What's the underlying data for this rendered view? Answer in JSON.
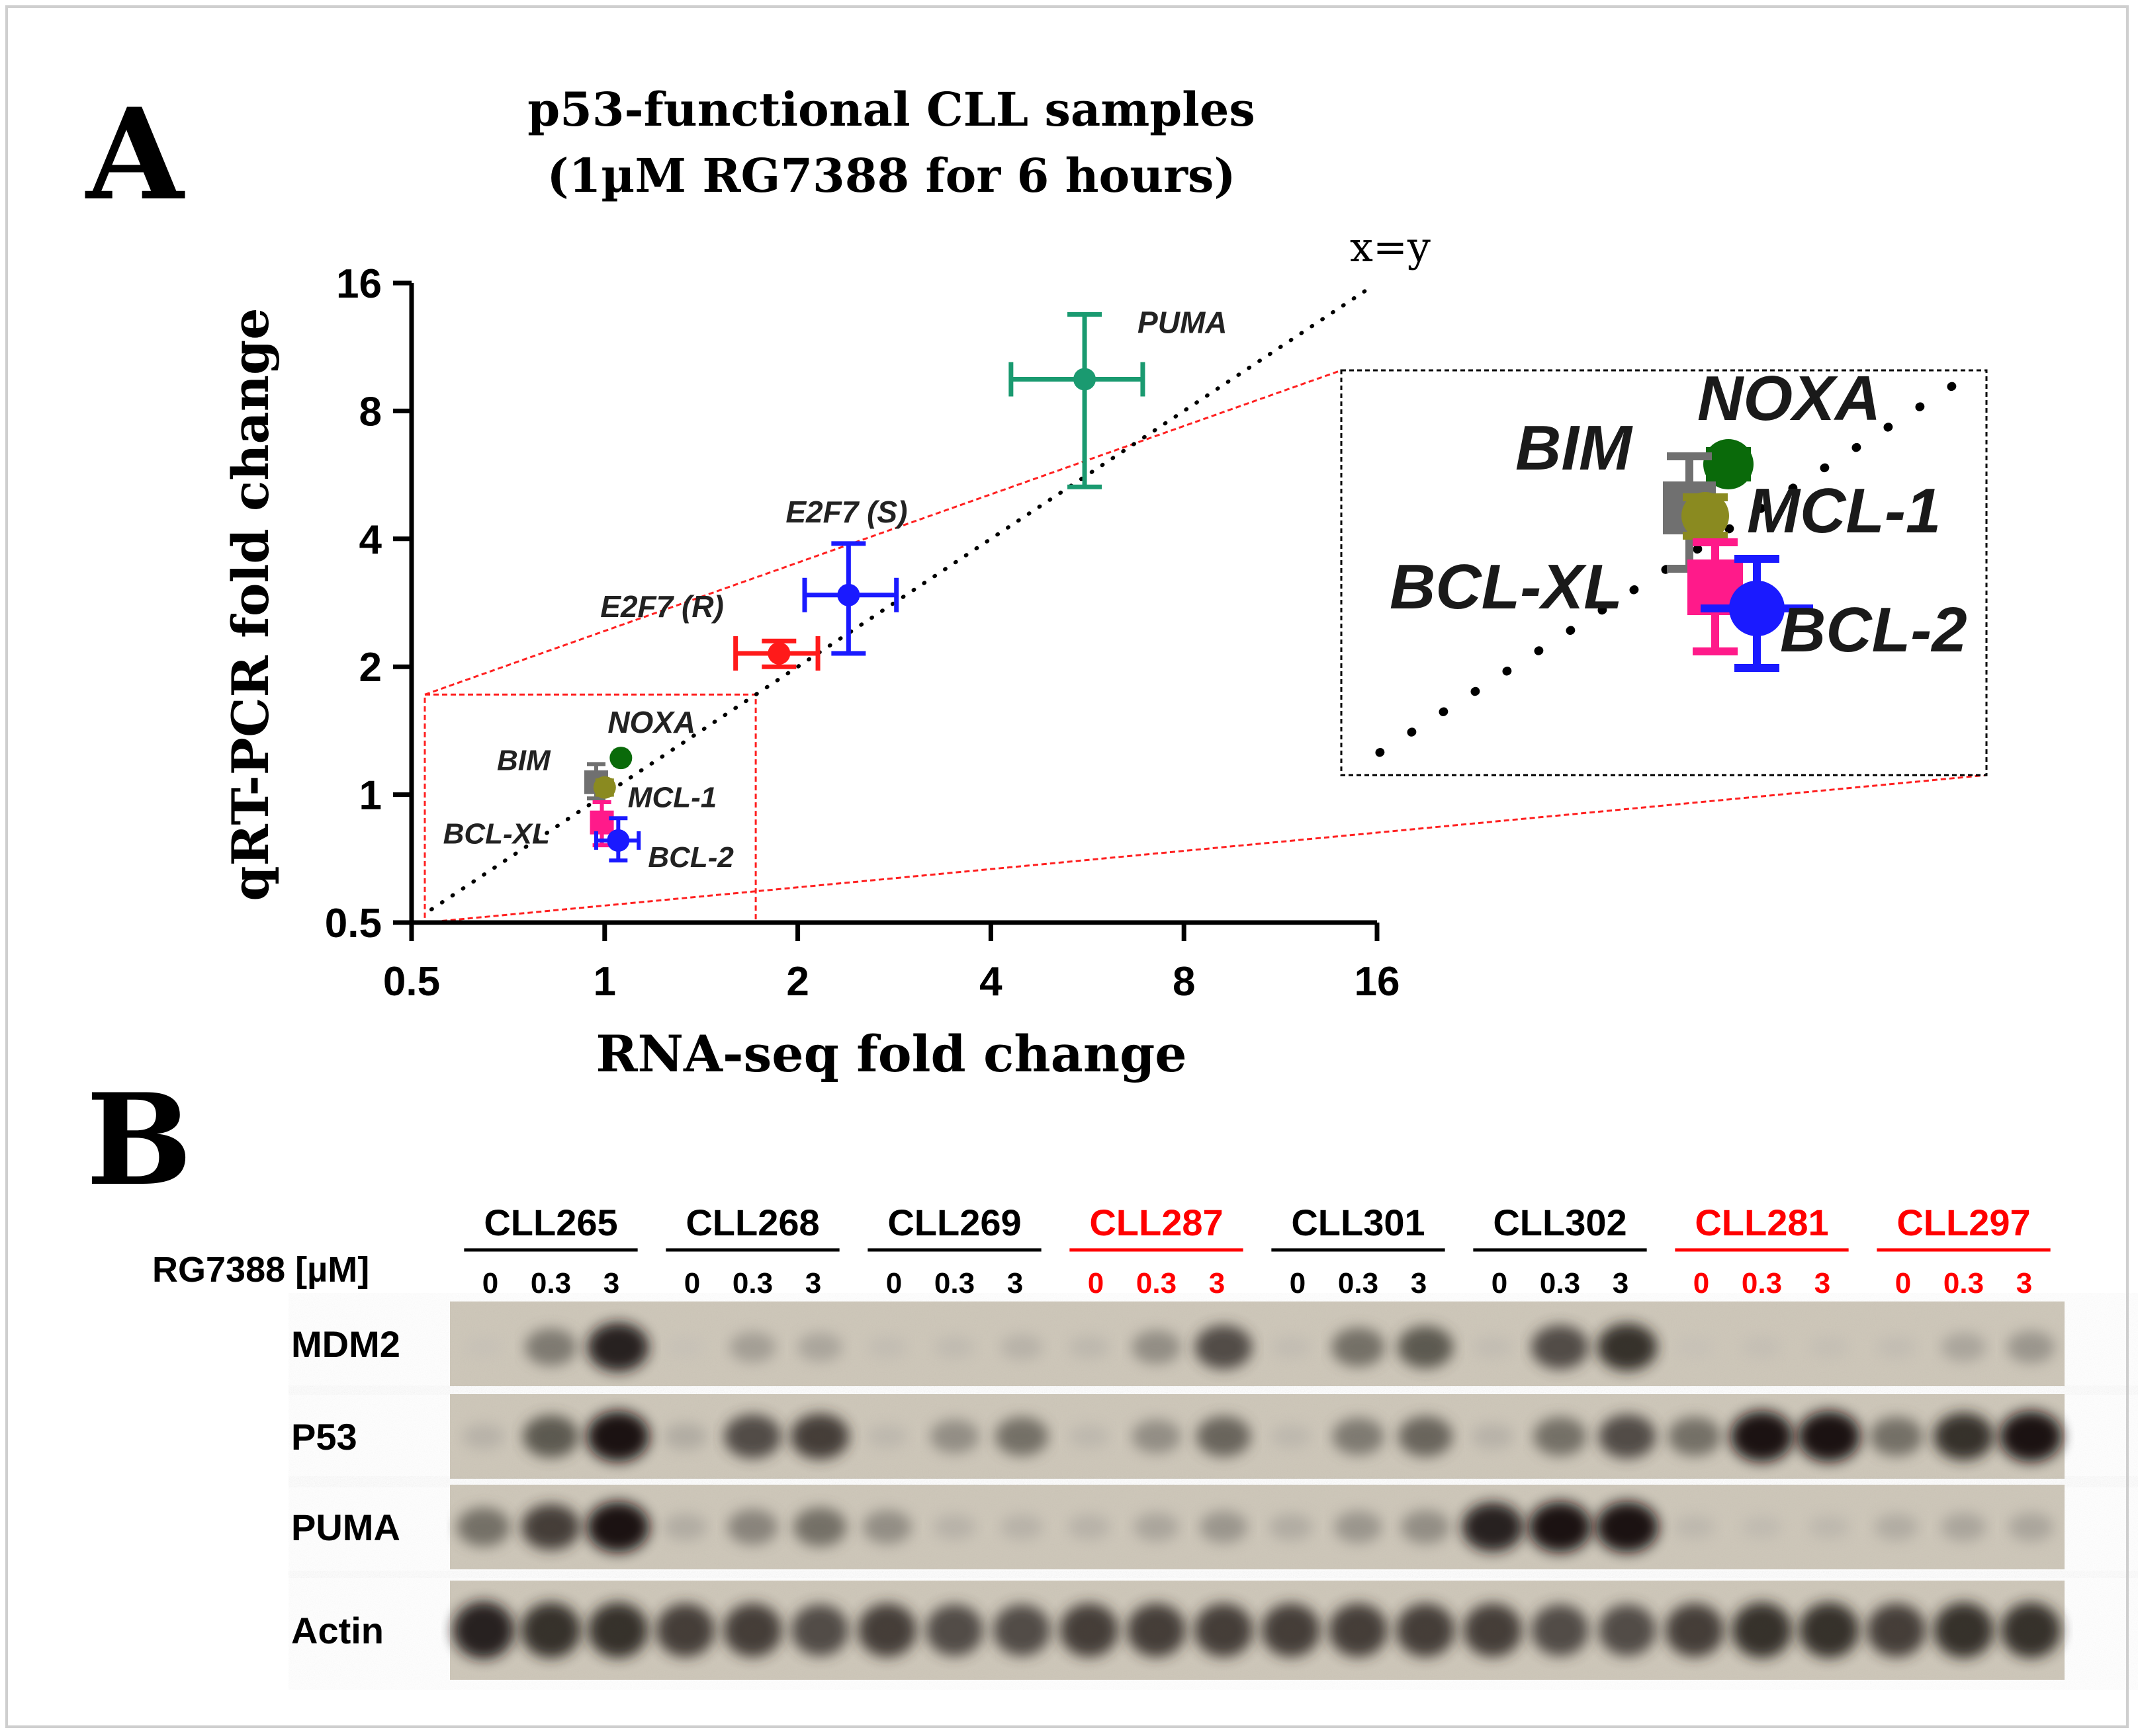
{
  "panel_a": {
    "label": "A",
    "title_line1": "p53-functional CLL samples",
    "title_line2": "(1µM RG7388 for 6 hours)",
    "diagonal_label": "x=y"
  },
  "chart_data": {
    "type": "scatter",
    "title": "p53-functional CLL samples (1µM RG7388 for 6 hours)",
    "xlabel": "RNA-seq fold change",
    "ylabel": "qRT-PCR fold change",
    "xscale": "log2",
    "yscale": "log2",
    "xlim": [
      0.5,
      16
    ],
    "ylim": [
      0.5,
      16
    ],
    "xticks": [
      "0.5",
      "1",
      "2",
      "4",
      "8",
      "16"
    ],
    "yticks": [
      "0.5",
      "1",
      "2",
      "4",
      "8",
      "16"
    ],
    "reference_line": "x=y",
    "points": [
      {
        "name": "PUMA",
        "x": 5.6,
        "y": 9.5,
        "xerr": [
          4.3,
          6.9
        ],
        "yerr": [
          5.3,
          13.5
        ],
        "color": "#1a9a70"
      },
      {
        "name": "E2F7 (S)",
        "x": 2.4,
        "y": 2.95,
        "xerr": [
          2.05,
          2.85
        ],
        "yerr": [
          2.15,
          3.9
        ],
        "color": "#1a1aff"
      },
      {
        "name": "E2F7 (R)",
        "x": 1.87,
        "y": 2.15,
        "xerr": [
          1.6,
          2.15
        ],
        "yerr": [
          2.0,
          2.3
        ],
        "color": "#ff1a1a"
      },
      {
        "name": "NOXA",
        "x": 1.06,
        "y": 1.22,
        "xerr": [
          1.04,
          1.08
        ],
        "yerr": [
          1.2,
          1.25
        ],
        "color": "#0a6a0a"
      },
      {
        "name": "BIM",
        "x": 0.97,
        "y": 1.07,
        "xerr": [
          0.95,
          0.99
        ],
        "yerr": [
          0.98,
          1.18
        ],
        "color": "#707070"
      },
      {
        "name": "MCL-1",
        "x": 1.0,
        "y": 1.04,
        "xerr": [
          0.98,
          1.02
        ],
        "yerr": [
          1.0,
          1.08
        ],
        "color": "#8a8a20"
      },
      {
        "name": "BCL-XL",
        "x": 0.99,
        "y": 0.86,
        "xerr": [
          0.97,
          1.01
        ],
        "yerr": [
          0.76,
          0.96
        ],
        "color": "#ff1a8a"
      },
      {
        "name": "BCL-2",
        "x": 1.05,
        "y": 0.78,
        "xerr": [
          0.97,
          1.13
        ],
        "yerr": [
          0.7,
          0.88
        ],
        "color": "#1a1aff"
      }
    ],
    "inset": {
      "region": "0.5 to 1.7 on both axes",
      "labels": [
        "NOXA",
        "BIM",
        "MCL-1",
        "BCL-XL",
        "BCL-2"
      ]
    }
  },
  "panel_b": {
    "label": "B",
    "treatment_label": "RG7388 [µM]",
    "samples": [
      {
        "name": "CLL265",
        "color": "#000000"
      },
      {
        "name": "CLL268",
        "color": "#000000"
      },
      {
        "name": "CLL269",
        "color": "#000000"
      },
      {
        "name": "CLL287",
        "color": "#ff0000"
      },
      {
        "name": "CLL301",
        "color": "#000000"
      },
      {
        "name": "CLL302",
        "color": "#000000"
      },
      {
        "name": "CLL281",
        "color": "#ff0000"
      },
      {
        "name": "CLL297",
        "color": "#ff0000"
      }
    ],
    "doses": [
      "0",
      "0.3",
      "3"
    ],
    "blots": [
      {
        "name": "MDM2",
        "intensity": [
          0.05,
          0.55,
          0.9,
          0.05,
          0.35,
          0.3,
          0.1,
          0.12,
          0.2,
          0.15,
          0.45,
          0.75,
          0.1,
          0.6,
          0.7,
          0.1,
          0.75,
          0.85,
          0.05,
          0.08,
          0.08,
          0.1,
          0.3,
          0.4
        ]
      },
      {
        "name": "P53",
        "intensity": [
          0.2,
          0.7,
          0.95,
          0.25,
          0.75,
          0.8,
          0.15,
          0.45,
          0.6,
          0.15,
          0.45,
          0.65,
          0.15,
          0.55,
          0.65,
          0.2,
          0.6,
          0.75,
          0.6,
          0.95,
          0.95,
          0.6,
          0.85,
          0.95
        ]
      },
      {
        "name": "PUMA",
        "intensity": [
          0.6,
          0.8,
          0.95,
          0.25,
          0.5,
          0.6,
          0.45,
          0.2,
          0.2,
          0.2,
          0.3,
          0.4,
          0.25,
          0.4,
          0.45,
          0.9,
          0.95,
          0.95,
          0.15,
          0.12,
          0.15,
          0.25,
          0.3,
          0.3
        ]
      },
      {
        "name": "Actin",
        "intensity": [
          0.9,
          0.85,
          0.85,
          0.8,
          0.8,
          0.75,
          0.8,
          0.75,
          0.75,
          0.8,
          0.8,
          0.8,
          0.8,
          0.8,
          0.8,
          0.8,
          0.75,
          0.75,
          0.8,
          0.85,
          0.85,
          0.8,
          0.85,
          0.85
        ]
      }
    ]
  }
}
